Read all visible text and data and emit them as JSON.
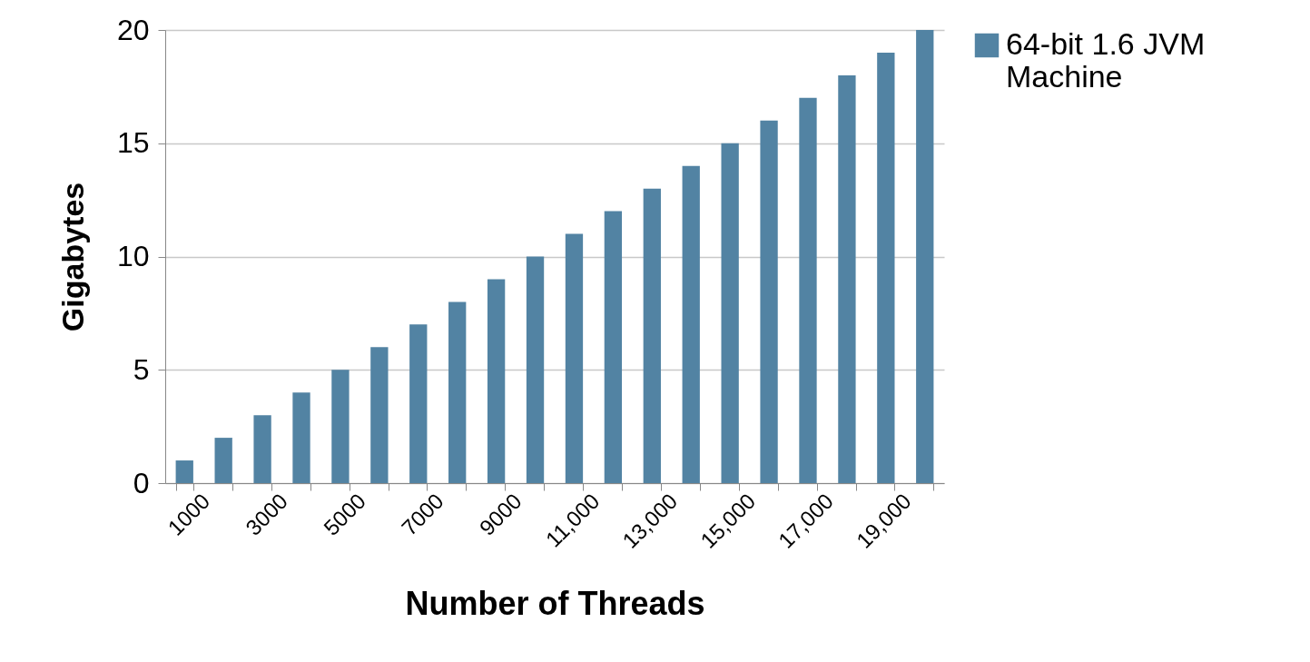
{
  "chart_data": {
    "type": "bar",
    "xlabel": "Number of Threads",
    "ylabel": "Gigabytes",
    "categories": [
      "1000",
      null,
      "3000",
      null,
      "5000",
      null,
      "7000",
      null,
      "9000",
      null,
      "11,000",
      null,
      "13,000",
      null,
      "15,000",
      null,
      "17,000",
      null,
      "19,000",
      null
    ],
    "series": [
      {
        "name": "64-bit 1.6 JVM Machine",
        "color": "#5283a3",
        "values": [
          1,
          2,
          3,
          4,
          5,
          6,
          7,
          8,
          9,
          10,
          11,
          12,
          13,
          14,
          15,
          16,
          17,
          18,
          19,
          20
        ]
      }
    ],
    "ylim": [
      0,
      20
    ],
    "yticks": [
      0,
      5,
      10,
      15,
      20
    ],
    "grid": "y",
    "legend": "right"
  }
}
